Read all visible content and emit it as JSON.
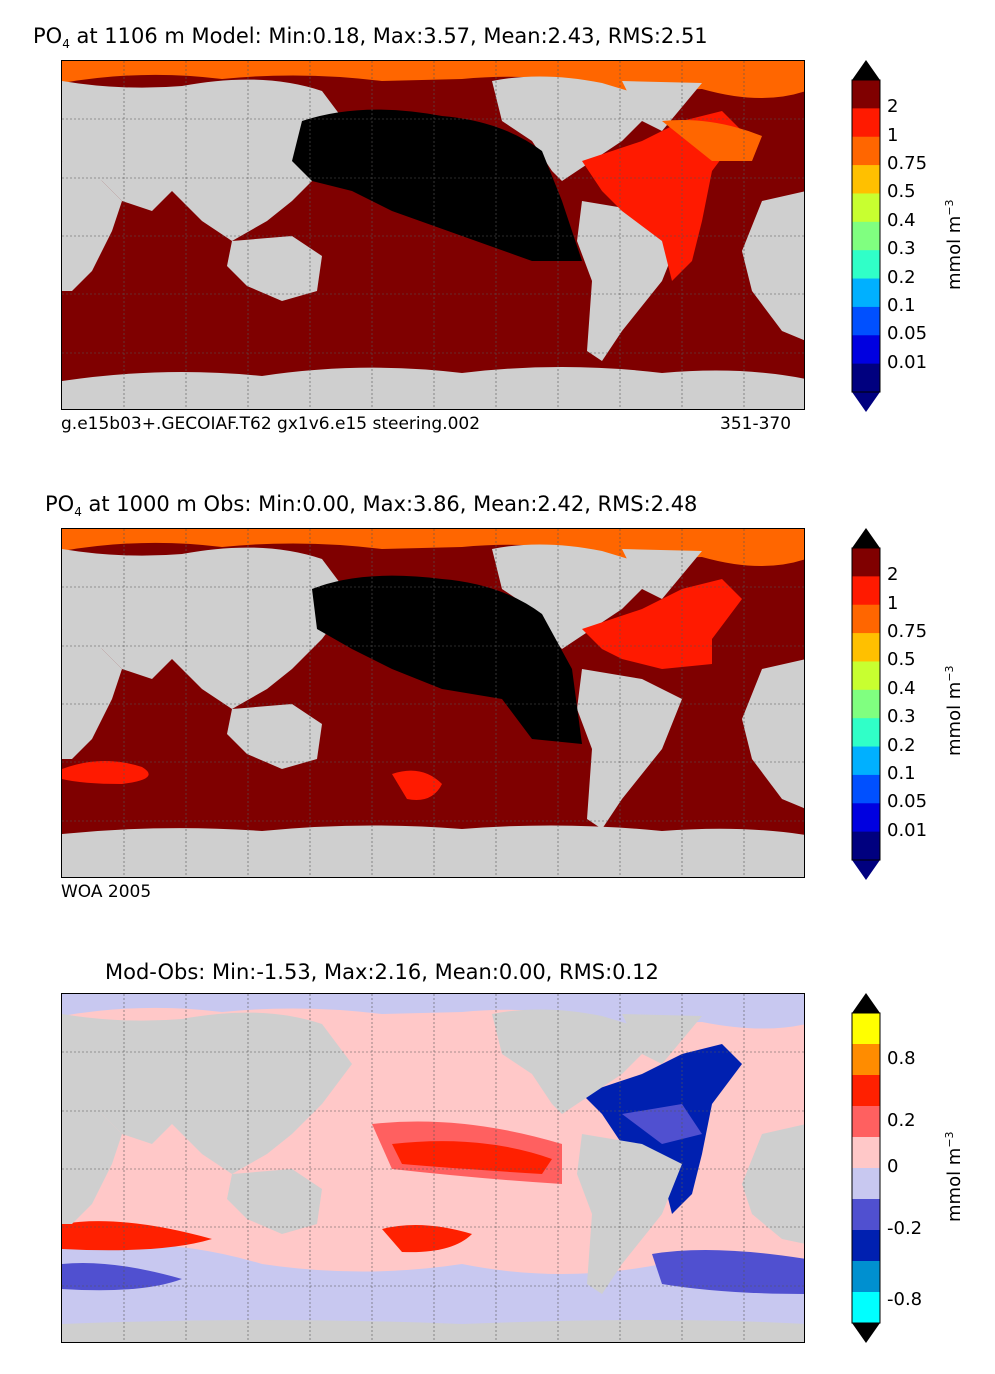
{
  "panels": [
    {
      "title_prefix": "PO",
      "title_sub": "4",
      "title_rest": " at 1106 m Model: Min:0.18, Max:3.57, Mean:2.43, RMS:2.51",
      "caption_left": "g.e15b03+.GECOIAF.T62 gx1v6.e15 steering.002",
      "caption_right": "351-370"
    },
    {
      "title_prefix": "PO",
      "title_sub": "4",
      "title_rest": " at 1000 m Obs: Min:0.00, Max:3.86, Mean:2.42, RMS:2.48",
      "caption_left": "WOA 2005",
      "caption_right": ""
    },
    {
      "title_prefix": "Mod-Obs: Min:-1.53, Max:2.16, Mean:0.00, RMS:0.12",
      "title_sub": "",
      "title_rest": "",
      "caption_left": "",
      "caption_right": ""
    }
  ],
  "colorbar_main": {
    "labels": [
      "2",
      "1",
      "0.75",
      "0.5",
      "0.4",
      "0.3",
      "0.2",
      "0.1",
      "0.05",
      "0.01"
    ],
    "colors": [
      "#800000",
      "#ff1a00",
      "#ff6600",
      "#ffc000",
      "#c8ff30",
      "#80ff80",
      "#30ffc8",
      "#00b0ff",
      "#0050ff",
      "#0000e0",
      "#00007f"
    ],
    "unit": "mmol m",
    "unit_exp": "−3"
  },
  "colorbar_diff": {
    "labels": [
      "0.8",
      "0.2",
      "0",
      "-0.2",
      "-0.8"
    ],
    "colors": [
      "#ffff00",
      "#ff8c00",
      "#ff2000",
      "#ff6060",
      "#ffc8c8",
      "#c8c8f0",
      "#5050d0",
      "#0020b0",
      "#0090d0",
      "#00ffff"
    ],
    "unit": "mmol m",
    "unit_exp": "−3"
  },
  "colors": {
    "land": "#cfcfcf",
    "deep_red": "#7f0000",
    "black": "#000000",
    "red": "#ff1a00",
    "orange": "#ff6600"
  }
}
